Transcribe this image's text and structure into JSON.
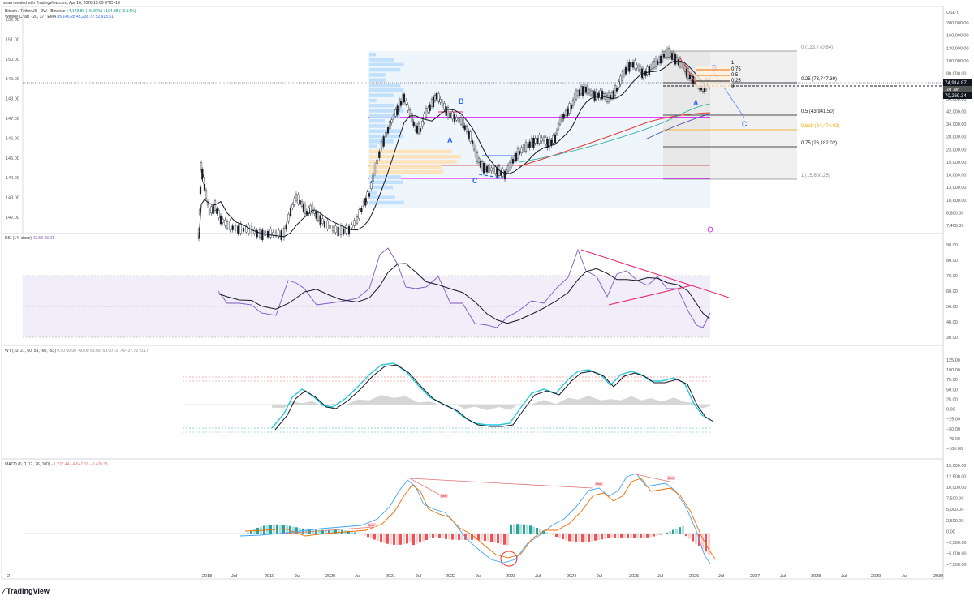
{
  "header": {
    "credit": "sean created with TradingView.com, Apr 16, 2026 15:09 UTC+10",
    "symbol_line": "Bitcoin / TetherUS · 2W · Binance",
    "symbol_values": "+4,173.89 (+5.90%)  +104.88 (+0.14%)",
    "ema_line": "Weekly Chart · 20, 377 EMA",
    "ema_values": "85,146.28  45,238.72  52,918.51"
  },
  "brand": {
    "name": "TradingView"
  },
  "main_pane": {
    "right_axis_unit": "USDT",
    "right_axis": [
      "200,000.00",
      "160,000.00",
      "130,000.00",
      "100,000.00",
      "80,000.00",
      "66,000.00",
      "54,000.00",
      "42,000.00",
      "34,000.00",
      "28,000.00",
      "23,000.00",
      "19,000.00",
      "16,000.00",
      "13,000.00",
      "10,600.00",
      "8,800.00",
      "7,400.00"
    ],
    "left_axis": [
      "152.00",
      "151.00",
      "150.00",
      "149.00",
      "148.00",
      "147.00",
      "146.00",
      "145.00",
      "144.00",
      "143.00",
      "142.00"
    ],
    "price_tags": [
      "74,914.87",
      "70,269.34"
    ],
    "price_tag_small": "10d 19h",
    "fib_levels": [
      {
        "ratio": 0,
        "label": "0 (123,770.84)",
        "color": "#888888"
      },
      {
        "ratio": 0.25,
        "label": "0.25 (73,747.39)",
        "color": "#131722"
      },
      {
        "ratio": 0.5,
        "label": "0.5 (43,941.50)",
        "color": "#131722"
      },
      {
        "ratio": 0.618,
        "label": "0.618 (34,474.02)",
        "color": "#f7a600"
      },
      {
        "ratio": 0.75,
        "label": "0.75 (26,182.02)",
        "color": "#131722"
      },
      {
        "ratio": 1,
        "label": "1 (15,600.25)",
        "color": "#888888"
      }
    ],
    "small_fib_labels": [
      "1",
      "0.75",
      "0.5",
      "0.25",
      "0"
    ],
    "wave_labels": [
      "A",
      "B",
      "C",
      "A",
      "B",
      "C"
    ],
    "colors": {
      "up": "#131722",
      "down": "#131722",
      "ema20": "#131722",
      "ema377": "#e53935",
      "ema_green": "#26a69a",
      "fib_magenta": "#d500f9",
      "wave": "#2962ff"
    }
  },
  "rsi_pane": {
    "legend": "RSI (14, close)",
    "legend_values": "42.58  43.21",
    "axis": [
      "90.00",
      "80.00",
      "70.00",
      "60.00",
      "50.00",
      "40.00",
      "30.00"
    ],
    "upper": 70,
    "lower": 30
  },
  "wt_pane": {
    "legend": "WT (10, 21, 60, 53, -60, -53)",
    "legend_values": "0.00  60.00  -60.00  53.00  -53.00  -37.49  -37.72  -0.17",
    "axis": [
      "125.00",
      "100.00",
      "75.00",
      "50.00",
      "25.00",
      "0.00",
      "−25.00",
      "−50.00",
      "−75.00",
      "−100.00"
    ]
  },
  "macd_pane": {
    "legend": "MACD (0, 0, 12, 26, 100)",
    "legend_values": "−1,227.44  −4,647.16  −3,420.35",
    "axis": [
      "15,000.00",
      "12,500.00",
      "10,000.00",
      "7,500.00",
      "5,000.00",
      "2,500.00",
      "0.00",
      "−2,500.00",
      "−5,000.00",
      "−7,500.00"
    ],
    "badges": [
      "Bear",
      "Bear",
      "Bear",
      "Bear"
    ]
  },
  "x_axis": [
    "2",
    "2018",
    "Jul",
    "2019",
    "Jul",
    "2020",
    "Jul",
    "2021",
    "Jul",
    "2022",
    "Jul",
    "2023",
    "Jul",
    "2024",
    "Jul",
    "2025",
    "Jul",
    "2026",
    "Jul",
    "2027",
    "Jul",
    "2028",
    "Jul",
    "2029",
    "Jul",
    "2030"
  ],
  "chart_data": {
    "type": "line",
    "title": "Bitcoin / TetherUS · 2W · Binance",
    "xlabel": "",
    "ylabel": "USDT",
    "x": [
      "2018",
      "2019",
      "2020",
      "2021",
      "2022",
      "2023",
      "2024",
      "2025",
      "2026"
    ],
    "series": [
      {
        "values": [
          6500,
          3700,
          7200,
          29000,
          47000,
          16500,
          42000,
          94000,
          74914
        ]
      }
    ],
    "fibonacci": {
      "high": 123770.84,
      "low": 15600.25
    }
  }
}
